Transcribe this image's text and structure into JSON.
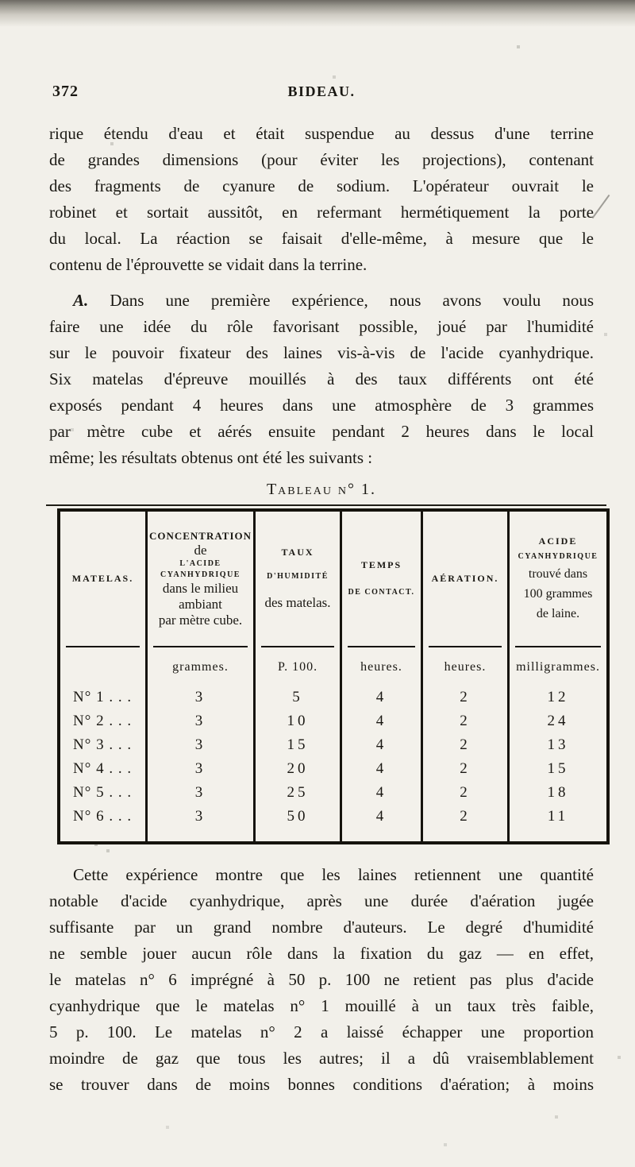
{
  "page": {
    "number": "372",
    "running_head": "BIDEAU."
  },
  "paragraphs": {
    "p1": {
      "lines": [
        "rique étendu d'eau et était suspendue au dessus d'une terrine",
        "de grandes dimensions (pour éviter les projections), contenant",
        "des fragments de cyanure de sodium. L'opérateur ouvrait le",
        "robinet et sortait aussitôt, en refermant hermétiquement la porte",
        "du local. La réaction se faisait d'elle-même, à mesure que le",
        "contenu de l'éprouvette se vidait dans la terrine."
      ]
    },
    "p2": {
      "lead": "A.",
      "lines": [
        "Dans une première expérience, nous avons voulu nous",
        "faire une idée du rôle favorisant possible, joué par l'humidité",
        "sur le pouvoir fixateur des laines vis-à-vis de l'acide cyanhydrique.",
        "Six matelas d'épreuve mouillés à des taux différents ont été",
        "exposés pendant 4 heures dans une atmosphère de 3 grammes",
        "par mètre cube et aérés ensuite pendant 2 heures dans le local",
        "même; les résultats obtenus ont été les suivants :"
      ]
    },
    "p3": {
      "lines": [
        "Cette expérience montre que les laines retiennent une quantité",
        "notable d'acide cyanhydrique, après une durée d'aération jugée",
        "suffisante par un grand nombre d'auteurs. Le degré d'humidité",
        "ne semble jouer aucun rôle dans la fixation du gaz — en effet,",
        "le matelas n° 6 imprégné à 50 p. 100 ne retient pas plus d'acide",
        "cyanhydrique que le matelas n° 1 mouillé à un taux très faible,",
        "5 p. 100. Le matelas n° 2 a laissé échapper une proportion",
        "moindre de gaz que tous les autres; il a dû vraisemblablement",
        "se trouver dans de moins bonnes conditions d'aération; à moins"
      ]
    }
  },
  "table": {
    "caption": "Tableau n° 1.",
    "headers": {
      "matelas": "MATELAS.",
      "concentration": [
        "CONCENTRATION",
        "de",
        "L'ACIDE",
        "CYANHYDRIQUE",
        "dans le milieu",
        "ambiant",
        "par mètre cube."
      ],
      "taux": [
        "TAUX",
        "D'HUMIDITÉ",
        "des matelas."
      ],
      "temps": [
        "TEMPS",
        "DE CONTACT."
      ],
      "aeration": "AÉRATION.",
      "acide": [
        "ACIDE",
        "CYANHYDRIQUE",
        "trouvé dans",
        "100 grammes",
        "de laine."
      ]
    },
    "units": [
      "grammes.",
      "P. 100.",
      "heures.",
      "heures.",
      "milligrammes."
    ],
    "rows": [
      {
        "label": "N° 1 . . .",
        "values": [
          "3",
          "5",
          "4",
          "2",
          "12"
        ]
      },
      {
        "label": "N° 2 . . .",
        "values": [
          "3",
          "10",
          "4",
          "2",
          "24"
        ]
      },
      {
        "label": "N° 3 . . .",
        "values": [
          "3",
          "15",
          "4",
          "2",
          "13"
        ]
      },
      {
        "label": "N° 4 . . .",
        "values": [
          "3",
          "20",
          "4",
          "2",
          "15"
        ]
      },
      {
        "label": "N° 5 . . .",
        "values": [
          "3",
          "25",
          "4",
          "2",
          "18"
        ]
      },
      {
        "label": "N° 6 . . .",
        "values": [
          "3",
          "50",
          "4",
          "2",
          "11"
        ]
      }
    ]
  }
}
